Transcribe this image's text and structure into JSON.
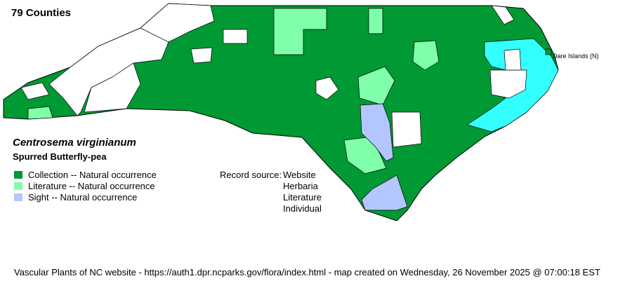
{
  "county_count": "79 Counties",
  "species": {
    "scientific_name": "Centrosema virginianum",
    "common_name": "Spurred Butterfly-pea"
  },
  "legend": [
    {
      "label": "Collection -- Natural occurrence",
      "color": "#009933"
    },
    {
      "label": "Literature -- Natural occurrence",
      "color": "#80ffaa"
    },
    {
      "label": "Sight -- Natural occurrence",
      "color": "#b3c6ff"
    }
  ],
  "record_source": {
    "label": "Record source:",
    "sources": [
      "Website",
      "Herbaria",
      "Literature",
      "Individual"
    ]
  },
  "map_label": "Dare Islands (N)",
  "colors": {
    "absent": "#ffffff",
    "water": "#33ffff",
    "border": "#000000"
  },
  "footer": "Vascular Plants of NC website - https://auth1.dpr.ncparks.gov/flora/index.html - map created on Wednesday, 26 November 2025 @ 07:00:18 EST"
}
